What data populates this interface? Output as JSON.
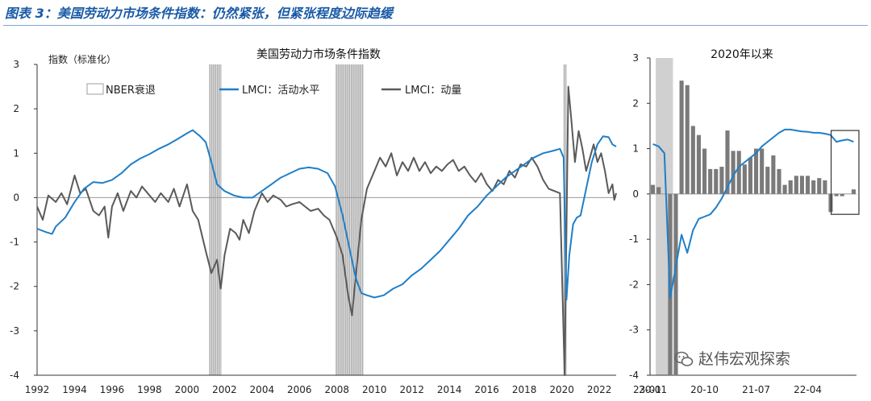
{
  "figure": {
    "title": "图表 3：美国劳动力市场条件指数：仍然紧张，但紧张程度边际趋缓",
    "watermark": "赵伟宏观探索",
    "watermark_icon": "wechat-icon"
  },
  "colors": {
    "activity": "#1f7fc8",
    "momentum": "#5a5a5a",
    "recession_main": "#9e9e9e",
    "recession_sub": "#d0d0d0",
    "bars": "#7a7a7a",
    "highlight_box": "#333333"
  },
  "chart_data": [
    {
      "type": "line",
      "title": "美国劳动力市场条件指数",
      "ylabel": "指数（标准化）",
      "xlim": [
        1992.0,
        2022.9
      ],
      "ylim": [
        -4,
        3
      ],
      "yticks": [
        3,
        2,
        1,
        0,
        -1,
        -2,
        -3,
        -4
      ],
      "xticks": [
        "1992",
        "1994",
        "1996",
        "1998",
        "2000",
        "2002",
        "2004",
        "2006",
        "2008",
        "2010",
        "2012",
        "2014",
        "2016",
        "2018",
        "2020",
        "2022"
      ],
      "legend": [
        "NBER衰退",
        "LMCI：活动水平",
        "LMCI：动量"
      ],
      "legend_position": "top-left",
      "recessions": [
        [
          2001.17,
          2001.83
        ],
        [
          2007.92,
          2009.42
        ],
        [
          2020.08,
          2020.25
        ]
      ],
      "series": [
        {
          "name": "LMCI：活动水平",
          "points": [
            [
              1992.0,
              -0.7
            ],
            [
              1992.5,
              -0.78
            ],
            [
              1992.8,
              -0.82
            ],
            [
              1993.0,
              -0.65
            ],
            [
              1993.5,
              -0.45
            ],
            [
              1994.0,
              -0.1
            ],
            [
              1994.5,
              0.2
            ],
            [
              1995.0,
              0.35
            ],
            [
              1995.5,
              0.33
            ],
            [
              1996.0,
              0.4
            ],
            [
              1996.5,
              0.55
            ],
            [
              1997.0,
              0.75
            ],
            [
              1997.5,
              0.88
            ],
            [
              1998.0,
              0.98
            ],
            [
              1998.5,
              1.1
            ],
            [
              1999.0,
              1.2
            ],
            [
              1999.5,
              1.32
            ],
            [
              2000.0,
              1.45
            ],
            [
              2000.3,
              1.52
            ],
            [
              2000.7,
              1.38
            ],
            [
              2001.0,
              1.25
            ],
            [
              2001.3,
              0.8
            ],
            [
              2001.6,
              0.3
            ],
            [
              2002.0,
              0.15
            ],
            [
              2002.5,
              0.05
            ],
            [
              2003.0,
              0.0
            ],
            [
              2003.5,
              0.0
            ],
            [
              2004.0,
              0.15
            ],
            [
              2004.5,
              0.3
            ],
            [
              2005.0,
              0.45
            ],
            [
              2005.5,
              0.55
            ],
            [
              2006.0,
              0.65
            ],
            [
              2006.5,
              0.68
            ],
            [
              2007.0,
              0.65
            ],
            [
              2007.5,
              0.55
            ],
            [
              2007.9,
              0.25
            ],
            [
              2008.3,
              -0.4
            ],
            [
              2008.7,
              -1.2
            ],
            [
              2009.0,
              -1.8
            ],
            [
              2009.3,
              -2.15
            ],
            [
              2009.6,
              -2.2
            ],
            [
              2010.0,
              -2.25
            ],
            [
              2010.5,
              -2.2
            ],
            [
              2011.0,
              -2.05
            ],
            [
              2011.5,
              -1.95
            ],
            [
              2012.0,
              -1.75
            ],
            [
              2012.5,
              -1.6
            ],
            [
              2013.0,
              -1.4
            ],
            [
              2013.5,
              -1.2
            ],
            [
              2014.0,
              -0.95
            ],
            [
              2014.5,
              -0.7
            ],
            [
              2015.0,
              -0.4
            ],
            [
              2015.5,
              -0.2
            ],
            [
              2016.0,
              0.05
            ],
            [
              2016.5,
              0.25
            ],
            [
              2017.0,
              0.45
            ],
            [
              2017.5,
              0.6
            ],
            [
              2018.0,
              0.75
            ],
            [
              2018.5,
              0.9
            ],
            [
              2019.0,
              1.0
            ],
            [
              2019.5,
              1.05
            ],
            [
              2019.9,
              1.1
            ],
            [
              2020.1,
              0.9
            ],
            [
              2020.25,
              -2.3
            ],
            [
              2020.4,
              -1.3
            ],
            [
              2020.6,
              -0.6
            ],
            [
              2020.8,
              -0.45
            ],
            [
              2021.0,
              -0.4
            ],
            [
              2021.3,
              0.2
            ],
            [
              2021.6,
              0.8
            ],
            [
              2021.9,
              1.2
            ],
            [
              2022.2,
              1.38
            ],
            [
              2022.5,
              1.36
            ],
            [
              2022.7,
              1.2
            ],
            [
              2022.9,
              1.15
            ]
          ]
        },
        {
          "name": "LMCI：动量",
          "points": [
            [
              1992.0,
              -0.2
            ],
            [
              1992.3,
              -0.5
            ],
            [
              1992.6,
              0.05
            ],
            [
              1993.0,
              -0.1
            ],
            [
              1993.3,
              0.1
            ],
            [
              1993.6,
              -0.15
            ],
            [
              1994.0,
              0.5
            ],
            [
              1994.3,
              0.1
            ],
            [
              1994.6,
              0.2
            ],
            [
              1995.0,
              -0.3
            ],
            [
              1995.3,
              -0.4
            ],
            [
              1995.6,
              -0.2
            ],
            [
              1995.8,
              -0.9
            ],
            [
              1996.0,
              -0.2
            ],
            [
              1996.3,
              0.1
            ],
            [
              1996.6,
              -0.3
            ],
            [
              1997.0,
              0.15
            ],
            [
              1997.3,
              0.0
            ],
            [
              1997.6,
              0.25
            ],
            [
              1998.0,
              0.05
            ],
            [
              1998.3,
              -0.1
            ],
            [
              1998.6,
              0.1
            ],
            [
              1999.0,
              -0.1
            ],
            [
              1999.3,
              0.2
            ],
            [
              1999.6,
              -0.2
            ],
            [
              2000.0,
              0.3
            ],
            [
              2000.3,
              -0.3
            ],
            [
              2000.6,
              -0.5
            ],
            [
              2001.0,
              -1.2
            ],
            [
              2001.3,
              -1.7
            ],
            [
              2001.6,
              -1.4
            ],
            [
              2001.8,
              -2.05
            ],
            [
              2002.0,
              -1.3
            ],
            [
              2002.3,
              -0.7
            ],
            [
              2002.6,
              -0.8
            ],
            [
              2002.8,
              -0.95
            ],
            [
              2003.0,
              -0.5
            ],
            [
              2003.3,
              -0.8
            ],
            [
              2003.6,
              -0.3
            ],
            [
              2004.0,
              0.1
            ],
            [
              2004.3,
              -0.1
            ],
            [
              2004.6,
              0.05
            ],
            [
              2005.0,
              -0.05
            ],
            [
              2005.3,
              -0.2
            ],
            [
              2005.6,
              -0.15
            ],
            [
              2006.0,
              -0.1
            ],
            [
              2006.3,
              -0.2
            ],
            [
              2006.6,
              -0.3
            ],
            [
              2007.0,
              -0.25
            ],
            [
              2007.3,
              -0.4
            ],
            [
              2007.6,
              -0.5
            ],
            [
              2008.0,
              -0.9
            ],
            [
              2008.3,
              -1.3
            ],
            [
              2008.6,
              -2.2
            ],
            [
              2008.8,
              -2.65
            ],
            [
              2009.0,
              -1.8
            ],
            [
              2009.3,
              -0.5
            ],
            [
              2009.6,
              0.2
            ],
            [
              2010.0,
              0.6
            ],
            [
              2010.3,
              0.9
            ],
            [
              2010.6,
              0.7
            ],
            [
              2010.9,
              1.0
            ],
            [
              2011.2,
              0.5
            ],
            [
              2011.5,
              0.8
            ],
            [
              2011.8,
              0.6
            ],
            [
              2012.1,
              0.9
            ],
            [
              2012.4,
              0.6
            ],
            [
              2012.7,
              0.8
            ],
            [
              2013.0,
              0.55
            ],
            [
              2013.3,
              0.7
            ],
            [
              2013.6,
              0.6
            ],
            [
              2013.9,
              0.75
            ],
            [
              2014.2,
              0.85
            ],
            [
              2014.5,
              0.6
            ],
            [
              2014.8,
              0.7
            ],
            [
              2015.1,
              0.5
            ],
            [
              2015.4,
              0.35
            ],
            [
              2015.7,
              0.55
            ],
            [
              2016.0,
              0.3
            ],
            [
              2016.3,
              0.15
            ],
            [
              2016.6,
              0.4
            ],
            [
              2016.9,
              0.3
            ],
            [
              2017.2,
              0.6
            ],
            [
              2017.5,
              0.45
            ],
            [
              2017.8,
              0.75
            ],
            [
              2018.1,
              0.7
            ],
            [
              2018.4,
              0.9
            ],
            [
              2018.7,
              0.7
            ],
            [
              2019.0,
              0.4
            ],
            [
              2019.3,
              0.2
            ],
            [
              2019.6,
              0.15
            ],
            [
              2019.9,
              0.1
            ],
            [
              2020.15,
              -4.0
            ],
            [
              2020.35,
              2.5
            ],
            [
              2020.5,
              1.8
            ],
            [
              2020.7,
              0.8
            ],
            [
              2020.9,
              1.5
            ],
            [
              2021.1,
              1.1
            ],
            [
              2021.3,
              0.6
            ],
            [
              2021.5,
              0.9
            ],
            [
              2021.7,
              1.2
            ],
            [
              2021.9,
              0.8
            ],
            [
              2022.1,
              1.0
            ],
            [
              2022.3,
              0.6
            ],
            [
              2022.5,
              0.1
            ],
            [
              2022.7,
              0.3
            ],
            [
              2022.8,
              -0.05
            ],
            [
              2022.9,
              0.1
            ]
          ]
        }
      ]
    },
    {
      "type": "bar",
      "title": "2020年以来",
      "ylim": [
        -4,
        3
      ],
      "yticks": [
        3,
        2,
        1,
        0,
        -1,
        -2,
        -3,
        -4
      ],
      "xticks": [
        "20-01",
        "20-10",
        "21-07",
        "22-04",
        "23-01"
      ],
      "recession_band": [
        "20-02",
        "20-04"
      ],
      "highlight_box": [
        "22-09",
        "22-12"
      ],
      "categories": [
        "20-01",
        "20-02",
        "20-03",
        "20-04",
        "20-05",
        "20-06",
        "20-07",
        "20-08",
        "20-09",
        "20-10",
        "20-11",
        "20-12",
        "21-01",
        "21-02",
        "21-03",
        "21-04",
        "21-05",
        "21-06",
        "21-07",
        "21-08",
        "21-09",
        "21-10",
        "21-11",
        "21-12",
        "22-01",
        "22-02",
        "22-03",
        "22-04",
        "22-05",
        "22-06",
        "22-07",
        "22-08",
        "22-09",
        "22-10",
        "22-11",
        "22-12"
      ],
      "series": [
        {
          "name": "LMCI：动量",
          "type": "bar",
          "values": [
            0.2,
            0.15,
            0,
            -4,
            -4,
            2.5,
            2.4,
            1.5,
            1.3,
            1.0,
            0.55,
            0.55,
            0.6,
            1.4,
            0.95,
            0.95,
            0.65,
            0.8,
            1.0,
            1.0,
            0.6,
            0.85,
            0.55,
            0.2,
            0.3,
            0.4,
            0.4,
            0.4,
            0.3,
            0.35,
            0.3,
            -0.4,
            -0.05,
            -0.05,
            0.0,
            0.1
          ]
        },
        {
          "name": "LMCI：活动水平",
          "type": "line",
          "values": [
            1.1,
            1.05,
            0.9,
            -2.3,
            -1.6,
            -0.9,
            -1.3,
            -0.8,
            -0.55,
            -0.5,
            -0.45,
            -0.3,
            -0.1,
            0.15,
            0.4,
            0.6,
            0.7,
            0.8,
            0.9,
            1.05,
            1.15,
            1.25,
            1.35,
            1.42,
            1.42,
            1.4,
            1.38,
            1.37,
            1.35,
            1.35,
            1.33,
            1.3,
            1.15,
            1.18,
            1.2,
            1.15
          ]
        }
      ]
    }
  ]
}
